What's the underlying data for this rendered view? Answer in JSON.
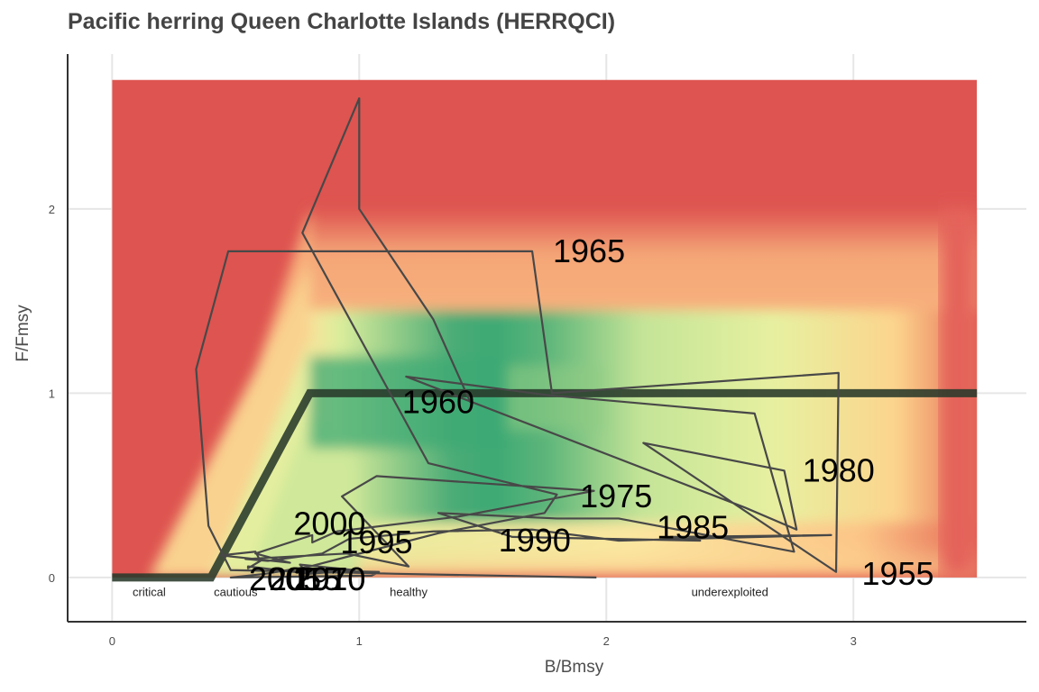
{
  "chart_data": {
    "type": "line",
    "title": "Pacific herring Queen Charlotte Islands (HERRQCI)",
    "xlabel": "B/Bmsy",
    "ylabel": "F/Fmsy",
    "xlim": [
      -0.18,
      3.7
    ],
    "ylim": [
      -0.24,
      2.84
    ],
    "x_ticks": [
      "0",
      "1",
      "2",
      "3"
    ],
    "y_ticks": [
      "0",
      "1",
      "2"
    ],
    "grid": true,
    "colors": {
      "red": "#de5450",
      "orange": "#f08a5e",
      "yellow": "#fce19a",
      "lightgreen": "#dcee9c",
      "green": "#3da974",
      "trajectory": "#484848",
      "reference": "#28392a"
    },
    "zones": [
      "critical",
      "cautious",
      "healthy",
      "underexploited"
    ],
    "reference_line": {
      "x": [
        0,
        0.4,
        0.8,
        3.5
      ],
      "y": [
        0,
        0,
        1,
        1
      ]
    },
    "trajectory": {
      "x": [
        1.96,
        1.15,
        0.85,
        0.48,
        0.39,
        0.34,
        0.47,
        1.7,
        1.78,
        2.94,
        2.93,
        2.15,
        2.72,
        2.77,
        2.56,
        1.19,
        1.76,
        2.6,
        2.76,
        2.05,
        1.8,
        1.32,
        1.62,
        2.38,
        2.26,
        2.91,
        2.05,
        1.7,
        1.3,
        0.96,
        0.85,
        0.63,
        0.54,
        0.95,
        1.2,
        0.93,
        1.07,
        1.95,
        1.4,
        0.91,
        0.81,
        0.81,
        0.58,
        0.72,
        0.44,
        0.58,
        0.6,
        0.55,
        0.55,
        0.8,
        0.98,
        0.76,
        0.78,
        1.08,
        1.05,
        0.48,
        0.62,
        0.8,
        1.32,
        1.75,
        1.8,
        1.28,
        0.77,
        1.0,
        1.0,
        1.3,
        1.45
      ],
      "y": [
        0.0,
        0.02,
        0.03,
        0.04,
        0.28,
        1.13,
        1.77,
        1.77,
        1.0,
        1.11,
        0.03,
        0.73,
        0.58,
        0.26,
        0.38,
        1.09,
        0.99,
        0.89,
        0.14,
        0.32,
        0.32,
        0.35,
        0.22,
        0.2,
        0.22,
        0.23,
        0.2,
        0.26,
        0.25,
        0.21,
        0.13,
        0.09,
        0.1,
        0.13,
        0.06,
        0.44,
        0.55,
        0.47,
        0.33,
        0.25,
        0.19,
        0.23,
        0.13,
        0.08,
        0.12,
        0.14,
        0.09,
        0.05,
        0.06,
        0.02,
        0.04,
        0.07,
        0.04,
        0.03,
        0.01,
        0.0,
        0.02,
        0.06,
        0.24,
        0.35,
        0.45,
        0.62,
        1.87,
        2.6,
        2.0,
        1.4,
        0.95
      ]
    },
    "year_labels": [
      {
        "text": "1955",
        "x": 3.18,
        "y": 0.02
      },
      {
        "text": "1960",
        "x": 1.32,
        "y": 0.95
      },
      {
        "text": "1965",
        "x": 1.93,
        "y": 1.77
      },
      {
        "text": "1970",
        "x": 0.88,
        "y": -0.01
      },
      {
        "text": "1975",
        "x": 2.04,
        "y": 0.44
      },
      {
        "text": "1980",
        "x": 2.94,
        "y": 0.58
      },
      {
        "text": "1985",
        "x": 2.35,
        "y": 0.27
      },
      {
        "text": "1990",
        "x": 1.71,
        "y": 0.2
      },
      {
        "text": "1995",
        "x": 1.07,
        "y": 0.19
      },
      {
        "text": "2000",
        "x": 0.88,
        "y": 0.29
      },
      {
        "text": "2005",
        "x": 0.7,
        "y": -0.01
      },
      {
        "text": "2010",
        "x": 0.88,
        "y": -0.01
      },
      {
        "text": "2015",
        "x": 0.78,
        "y": -0.01
      }
    ]
  }
}
